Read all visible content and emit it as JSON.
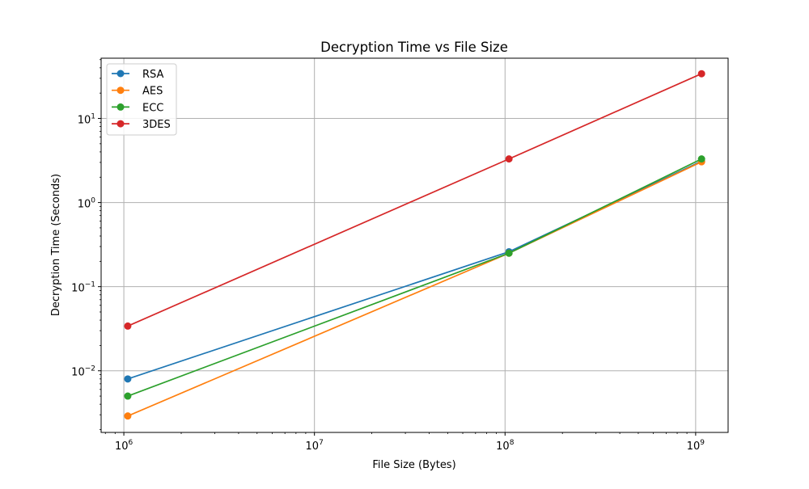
{
  "chart_data": {
    "type": "line",
    "title": "Decryption Time vs File Size",
    "xlabel": "File Size (Bytes)",
    "ylabel": "Decryption Time (Seconds)",
    "x_scale": "log",
    "y_scale": "log",
    "xlim": [
      760000,
      1480000000
    ],
    "ylim": [
      0.00185,
      52
    ],
    "grid": true,
    "legend_position": "top-left",
    "x_ticks": [
      {
        "value": 1000000,
        "base": "10",
        "exp": "6"
      },
      {
        "value": 10000000,
        "base": "10",
        "exp": "7"
      },
      {
        "value": 100000000,
        "base": "10",
        "exp": "8"
      },
      {
        "value": 1000000000,
        "base": "10",
        "exp": "9"
      }
    ],
    "y_ticks": [
      {
        "value": 0.01,
        "base": "10",
        "exp": "−2"
      },
      {
        "value": 0.1,
        "base": "10",
        "exp": "−1"
      },
      {
        "value": 1,
        "base": "10",
        "exp": "0"
      },
      {
        "value": 10,
        "base": "10",
        "exp": "1"
      }
    ],
    "x": [
      1048576,
      104857600,
      1073741824
    ],
    "series": [
      {
        "name": "RSA",
        "color": "#1f77b4",
        "values": [
          0.008,
          0.26,
          3.1
        ]
      },
      {
        "name": "AES",
        "color": "#ff7f0e",
        "values": [
          0.0029,
          0.25,
          3.05
        ]
      },
      {
        "name": "ECC",
        "color": "#2ca02c",
        "values": [
          0.005,
          0.25,
          3.3
        ]
      },
      {
        "name": "3DES",
        "color": "#d62728",
        "values": [
          0.034,
          3.3,
          34
        ]
      }
    ]
  }
}
